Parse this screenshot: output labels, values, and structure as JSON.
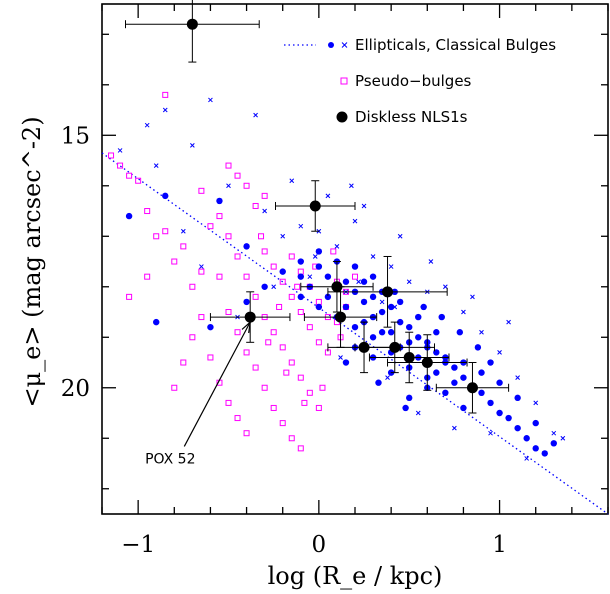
{
  "chart_data": {
    "type": "scatter",
    "title": "",
    "xlabel": "log (R_e / kpc)",
    "ylabel": "<μ_e> (mag arcsec^-2)",
    "xlim": [
      -1.2,
      1.6
    ],
    "ylim": [
      22.5,
      12.4
    ],
    "y_inverted": true,
    "x_major_ticks": [
      -1,
      0,
      1
    ],
    "x_tick_labels": [
      "−1",
      "0",
      "1"
    ],
    "y_major_ticks": [
      15,
      20
    ],
    "y_tick_labels": [
      "15",
      "20"
    ],
    "grid": false,
    "legend_position": "top-right",
    "legend": [
      {
        "label": "Ellipticals, Classical Bulges",
        "markers": [
          "dotted-line",
          "dot",
          "cross"
        ],
        "color": "#0000ff"
      },
      {
        "label": "Pseudo−bulges",
        "markers": [
          "open-square"
        ],
        "color": "#ff00ff"
      },
      {
        "label": "Diskless NLS1s",
        "markers": [
          "filled-circle"
        ],
        "color": "#000000"
      }
    ],
    "series": [
      {
        "name": "Ellipticals, Classical Bulges",
        "color": "#0000ff",
        "relation_line": {
          "x": [
            -1.2,
            1.6
          ],
          "y": [
            15.35,
            22.5
          ]
        },
        "points": [
          [
            0.0,
            17.6
          ],
          [
            0.05,
            17.8
          ],
          [
            0.1,
            18.0
          ],
          [
            0.15,
            17.9
          ],
          [
            0.2,
            18.1
          ],
          [
            0.25,
            18.3
          ],
          [
            0.3,
            18.2
          ],
          [
            0.35,
            18.5
          ],
          [
            0.4,
            18.4
          ],
          [
            0.45,
            18.7
          ],
          [
            0.5,
            18.8
          ],
          [
            0.55,
            19.0
          ],
          [
            0.6,
            19.1
          ],
          [
            0.65,
            19.3
          ],
          [
            0.7,
            19.4
          ],
          [
            0.75,
            19.6
          ],
          [
            0.8,
            19.8
          ],
          [
            0.85,
            20.0
          ],
          [
            0.9,
            20.1
          ],
          [
            0.95,
            20.3
          ],
          [
            1.0,
            20.5
          ],
          [
            1.05,
            20.6
          ],
          [
            1.1,
            20.8
          ],
          [
            1.15,
            21.0
          ],
          [
            1.2,
            21.2
          ],
          [
            1.25,
            21.3
          ],
          [
            0.3,
            19.0
          ],
          [
            0.4,
            19.3
          ],
          [
            0.5,
            19.6
          ],
          [
            0.6,
            19.8
          ],
          [
            0.35,
            18.9
          ],
          [
            0.45,
            19.2
          ],
          [
            0.55,
            19.4
          ],
          [
            0.65,
            19.7
          ],
          [
            0.75,
            19.9
          ],
          [
            0.25,
            18.7
          ],
          [
            0.15,
            18.4
          ],
          [
            0.05,
            18.2
          ],
          [
            -0.05,
            18.0
          ],
          [
            -0.1,
            17.8
          ],
          [
            0.2,
            18.8
          ],
          [
            0.3,
            18.6
          ],
          [
            0.4,
            18.9
          ],
          [
            0.5,
            19.1
          ],
          [
            0.6,
            19.2
          ],
          [
            0.7,
            19.5
          ],
          [
            0.8,
            19.5
          ],
          [
            0.9,
            19.7
          ],
          [
            1.0,
            19.9
          ],
          [
            0.45,
            18.3
          ],
          [
            0.55,
            18.6
          ],
          [
            0.65,
            18.9
          ],
          [
            0.35,
            18.1
          ],
          [
            0.25,
            17.9
          ],
          [
            0.1,
            17.5
          ],
          [
            0.0,
            17.3
          ],
          [
            -0.1,
            17.5
          ],
          [
            -0.2,
            17.7
          ],
          [
            -0.3,
            18.0
          ],
          [
            -0.4,
            18.3
          ],
          [
            0.5,
            20.2
          ],
          [
            0.6,
            20.0
          ],
          [
            0.4,
            19.7
          ],
          [
            0.3,
            19.4
          ],
          [
            0.2,
            19.2
          ],
          [
            0.7,
            20.1
          ],
          [
            0.8,
            20.4
          ],
          [
            1.1,
            20.2
          ],
          [
            1.2,
            20.7
          ],
          [
            1.3,
            21.1
          ],
          [
            0.1,
            18.6
          ],
          [
            0.0,
            18.4
          ],
          [
            -0.1,
            18.2
          ],
          [
            0.2,
            17.6
          ],
          [
            0.3,
            17.8
          ],
          [
            0.42,
            18.1
          ],
          [
            0.58,
            18.4
          ],
          [
            0.68,
            18.6
          ],
          [
            0.78,
            18.9
          ],
          [
            0.88,
            19.2
          ],
          [
            -1.05,
            16.6
          ],
          [
            -0.85,
            16.2
          ],
          [
            -0.55,
            16.3
          ],
          [
            -0.4,
            17.2
          ],
          [
            -0.6,
            18.8
          ],
          [
            -0.9,
            18.7
          ],
          [
            0.15,
            19.5
          ],
          [
            0.33,
            19.9
          ],
          [
            0.48,
            20.4
          ],
          [
            0.95,
            19.5
          ]
        ],
        "crosses": [
          [
            -1.1,
            15.3
          ],
          [
            -0.9,
            15.6
          ],
          [
            -0.7,
            15.2
          ],
          [
            -0.5,
            16.0
          ],
          [
            -0.3,
            16.5
          ],
          [
            -0.2,
            17.0
          ],
          [
            -0.1,
            16.8
          ],
          [
            0.0,
            16.9
          ],
          [
            0.1,
            17.2
          ],
          [
            0.2,
            16.7
          ],
          [
            0.3,
            17.4
          ],
          [
            0.4,
            17.6
          ],
          [
            0.5,
            17.9
          ],
          [
            0.6,
            18.1
          ],
          [
            0.7,
            18.0
          ],
          [
            0.8,
            18.5
          ],
          [
            0.9,
            18.9
          ],
          [
            1.0,
            19.3
          ],
          [
            1.1,
            19.8
          ],
          [
            1.2,
            20.3
          ],
          [
            1.3,
            20.9
          ],
          [
            1.35,
            21.0
          ],
          [
            -0.95,
            14.8
          ],
          [
            -0.85,
            14.5
          ],
          [
            -0.6,
            14.3
          ],
          [
            -0.35,
            14.6
          ],
          [
            -0.15,
            15.9
          ],
          [
            0.05,
            16.2
          ],
          [
            0.25,
            16.4
          ],
          [
            0.45,
            17.0
          ],
          [
            0.15,
            18.1
          ],
          [
            0.35,
            18.3
          ],
          [
            -0.05,
            17.8
          ],
          [
            -0.25,
            18.0
          ],
          [
            -0.45,
            18.6
          ],
          [
            0.55,
            20.5
          ],
          [
            0.75,
            20.8
          ],
          [
            0.95,
            20.9
          ],
          [
            0.12,
            19.4
          ],
          [
            0.38,
            19.8
          ],
          [
            -0.75,
            16.9
          ],
          [
            -0.65,
            17.6
          ],
          [
            0.62,
            17.5
          ],
          [
            0.85,
            18.2
          ],
          [
            1.05,
            18.7
          ],
          [
            0.22,
            17.9
          ],
          [
            0.42,
            18.4
          ],
          [
            -0.02,
            17.4
          ],
          [
            0.18,
            16.0
          ],
          [
            1.15,
            21.4
          ]
        ]
      },
      {
        "name": "Pseudo−bulges",
        "color": "#ff00ff",
        "points": [
          [
            -1.15,
            15.4
          ],
          [
            -1.1,
            15.6
          ],
          [
            -1.05,
            15.8
          ],
          [
            -0.95,
            16.5
          ],
          [
            -0.9,
            17.0
          ],
          [
            -0.85,
            16.9
          ],
          [
            -0.8,
            17.5
          ],
          [
            -0.75,
            17.2
          ],
          [
            -0.7,
            18.0
          ],
          [
            -0.65,
            17.7
          ],
          [
            -0.6,
            16.8
          ],
          [
            -0.55,
            16.6
          ],
          [
            -0.5,
            17.0
          ],
          [
            -0.45,
            17.4
          ],
          [
            -0.4,
            17.8
          ],
          [
            -0.35,
            18.2
          ],
          [
            -0.3,
            18.6
          ],
          [
            -0.25,
            18.9
          ],
          [
            -0.2,
            19.2
          ],
          [
            -0.15,
            19.5
          ],
          [
            -0.1,
            19.8
          ],
          [
            -0.05,
            20.1
          ],
          [
            0.0,
            20.4
          ],
          [
            -0.5,
            18.5
          ],
          [
            -0.45,
            18.9
          ],
          [
            -0.4,
            19.3
          ],
          [
            -0.35,
            19.6
          ],
          [
            -0.3,
            20.0
          ],
          [
            -0.25,
            20.4
          ],
          [
            -0.2,
            20.7
          ],
          [
            -0.15,
            21.0
          ],
          [
            -0.1,
            21.2
          ],
          [
            -0.3,
            17.3
          ],
          [
            -0.25,
            17.6
          ],
          [
            -0.2,
            17.9
          ],
          [
            -0.15,
            18.2
          ],
          [
            -0.1,
            18.5
          ],
          [
            -0.05,
            18.8
          ],
          [
            0.0,
            19.1
          ],
          [
            0.05,
            19.3
          ],
          [
            0.1,
            18.7
          ],
          [
            0.15,
            18.4
          ],
          [
            -0.15,
            17.4
          ],
          [
            -0.1,
            17.7
          ],
          [
            -0.05,
            18.0
          ],
          [
            0.0,
            18.3
          ],
          [
            0.05,
            18.6
          ],
          [
            0.1,
            17.9
          ],
          [
            0.15,
            18.1
          ],
          [
            0.2,
            17.8
          ],
          [
            -0.6,
            19.4
          ],
          [
            -0.55,
            19.9
          ],
          [
            -0.5,
            20.3
          ],
          [
            -0.45,
            20.6
          ],
          [
            -0.4,
            20.9
          ],
          [
            -0.65,
            18.6
          ],
          [
            -0.7,
            19.0
          ],
          [
            -0.75,
            19.5
          ],
          [
            -0.8,
            20.0
          ],
          [
            -0.55,
            17.8
          ],
          [
            -0.35,
            16.4
          ],
          [
            -0.3,
            16.2
          ],
          [
            -0.4,
            16.0
          ],
          [
            -0.45,
            15.8
          ],
          [
            -0.5,
            15.6
          ],
          [
            -0.85,
            14.2
          ],
          [
            -1.0,
            15.9
          ],
          [
            -0.95,
            17.8
          ],
          [
            -1.05,
            18.2
          ],
          [
            -0.65,
            16.1
          ],
          [
            -0.22,
            18.4
          ],
          [
            -0.12,
            18.0
          ],
          [
            -0.02,
            17.6
          ],
          [
            0.08,
            17.3
          ],
          [
            -0.28,
            19.1
          ],
          [
            -0.18,
            19.7
          ],
          [
            -0.08,
            20.3
          ],
          [
            0.02,
            20.0
          ],
          [
            0.12,
            19.0
          ],
          [
            -0.32,
            17.0
          ]
        ]
      },
      {
        "name": "Diskless NLS1s",
        "color": "#000000",
        "points": [
          {
            "x": -0.7,
            "y": 12.8,
            "xerr": 0.37,
            "yerr": 0.75
          },
          {
            "x": -0.38,
            "y": 18.6,
            "xerr": 0.22,
            "yerr": 0.5
          },
          {
            "x": -0.02,
            "y": 16.4,
            "xerr": 0.22,
            "yerr": 0.5
          },
          {
            "x": 0.1,
            "y": 18.0,
            "xerr": 0.2,
            "yerr": 0.5
          },
          {
            "x": 0.12,
            "y": 18.6,
            "xerr": 0.2,
            "yerr": 0.6
          },
          {
            "x": 0.25,
            "y": 19.2,
            "xerr": 0.2,
            "yerr": 0.5
          },
          {
            "x": 0.38,
            "y": 18.1,
            "xerr": 0.33,
            "yerr": 0.7
          },
          {
            "x": 0.42,
            "y": 19.2,
            "xerr": 0.22,
            "yerr": 0.5
          },
          {
            "x": 0.5,
            "y": 19.4,
            "xerr": 0.22,
            "yerr": 0.5
          },
          {
            "x": 0.6,
            "y": 19.5,
            "xerr": 0.22,
            "yerr": 0.55
          },
          {
            "x": 0.85,
            "y": 20.0,
            "xerr": 0.2,
            "yerr": 0.5
          }
        ]
      }
    ],
    "annotations": [
      {
        "text": "POX 52",
        "x": -0.8,
        "y": 21.4,
        "arrow_to": {
          "x": -0.38,
          "y": 18.7
        }
      }
    ]
  }
}
